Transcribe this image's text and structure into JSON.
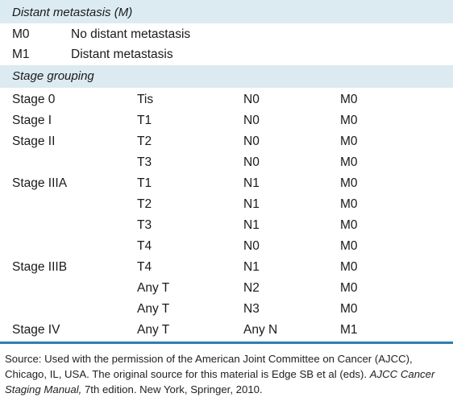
{
  "distant": {
    "header": "Distant metastasis (M)",
    "rows": [
      {
        "code": "M0",
        "desc": "No distant metastasis"
      },
      {
        "code": "M1",
        "desc": "Distant metastasis"
      }
    ]
  },
  "grouping": {
    "header": "Stage grouping",
    "rows": [
      {
        "stage": "Stage 0",
        "t": "Tis",
        "n": "N0",
        "m": "M0"
      },
      {
        "stage": "Stage I",
        "t": "T1",
        "n": "N0",
        "m": "M0"
      },
      {
        "stage": "Stage II",
        "t": "T2",
        "n": "N0",
        "m": "M0"
      },
      {
        "stage": "",
        "t": "T3",
        "n": "N0",
        "m": "M0"
      },
      {
        "stage": "Stage IIIA",
        "t": "T1",
        "n": "N1",
        "m": "M0"
      },
      {
        "stage": "",
        "t": "T2",
        "n": "N1",
        "m": "M0"
      },
      {
        "stage": "",
        "t": "T3",
        "n": "N1",
        "m": "M0"
      },
      {
        "stage": "",
        "t": "T4",
        "n": "N0",
        "m": "M0"
      },
      {
        "stage": "Stage IIIB",
        "t": "T4",
        "n": "N1",
        "m": "M0"
      },
      {
        "stage": "",
        "t": "Any T",
        "n": "N2",
        "m": "M0"
      },
      {
        "stage": "",
        "t": "Any T",
        "n": "N3",
        "m": "M0"
      },
      {
        "stage": "Stage IV",
        "t": "Any T",
        "n": "Any N",
        "m": "M1"
      }
    ]
  },
  "source": {
    "prefix": "Source: Used with the permission of the American Joint Committee on Cancer (AJCC), Chicago, IL, USA. The original source for this material is Edge SB et al (eds). ",
    "title": "AJCC Cancer Staging Manual,",
    "suffix": " 7th edition. New York, Springer, 2010."
  }
}
